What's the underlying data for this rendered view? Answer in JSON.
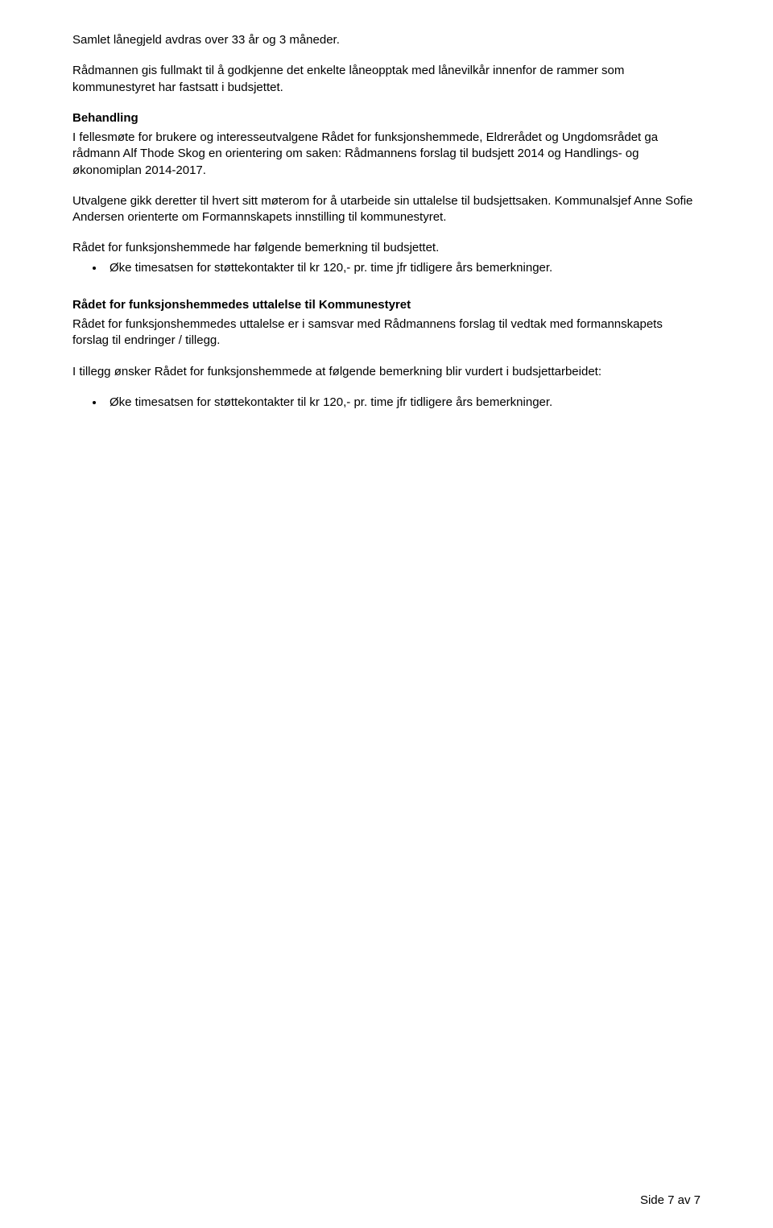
{
  "para1": "Samlet lånegjeld avdras over 33 år og 3 måneder.",
  "para2": "Rådmannen gis fullmakt til å godkjenne det enkelte låneopptak med lånevilkår innenfor de rammer som kommunestyret har fastsatt i budsjettet.",
  "heading_behandling": "Behandling",
  "para3": "I fellesmøte for brukere og interesseutvalgene Rådet for funksjonshemmede, Eldrerådet og Ungdomsrådet ga rådmann Alf Thode Skog en orientering om saken: Rådmannens forslag til budsjett 2014 og Handlings- og økonomiplan 2014-2017.",
  "para4": "Utvalgene gikk deretter til hvert sitt møterom for å utarbeide sin uttalelse til budsjettsaken. Kommunalsjef Anne Sofie Andersen orienterte om Formannskapets innstilling til kommunestyret.",
  "para5": "Rådet for funksjonshemmede har følgende bemerkning til budsjettet.",
  "bullet1": "Øke timesatsen for støttekontakter til kr 120,- pr. time jfr tidligere års bemerkninger.",
  "heading_uttalelse": "Rådet for funksjonshemmedes uttalelse til Kommunestyret",
  "para6": "Rådet for funksjonshemmedes uttalelse er i samsvar med Rådmannens forslag til vedtak med formannskapets forslag til endringer / tillegg.",
  "para7": "I tillegg ønsker Rådet for funksjonshemmede at følgende bemerkning blir vurdert i budsjettarbeidet:",
  "bullet2": "Øke timesatsen for støttekontakter til kr 120,- pr. time jfr tidligere års bemerkninger.",
  "footer": "Side 7 av 7"
}
